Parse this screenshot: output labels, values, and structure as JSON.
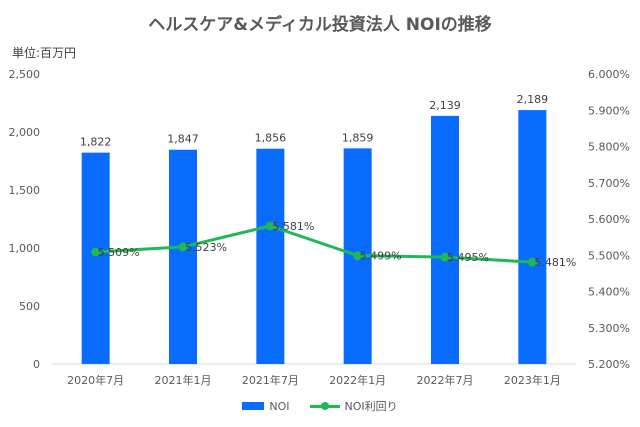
{
  "chart_data": {
    "type": "bar+line",
    "title": "ヘルスケア&メディカル投資法人 NOIの推移",
    "unit_label": "単位:百万円",
    "categories": [
      "2020年7月",
      "2021年1月",
      "2021年7月",
      "2022年1月",
      "2022年7月",
      "2023年1月"
    ],
    "series": [
      {
        "name": "NOI",
        "type": "bar",
        "axis": "left",
        "color": "#0a6cff",
        "values": [
          1822,
          1847,
          1856,
          1859,
          2139,
          2189
        ],
        "labels": [
          "1,822",
          "1,847",
          "1,856",
          "1,859",
          "2,139",
          "2,189"
        ]
      },
      {
        "name": "NOI利回り",
        "type": "line",
        "axis": "right",
        "color": "#1db954",
        "values": [
          5.509,
          5.523,
          5.581,
          5.499,
          5.495,
          5.481
        ],
        "labels": [
          "5.509%",
          "5.523%",
          "5.581%",
          "5.499%",
          "5.495%",
          "5.481%"
        ]
      }
    ],
    "y_left": {
      "min": 0,
      "max": 2500,
      "ticks": [
        0,
        500,
        1000,
        1500,
        2000,
        2500
      ],
      "tick_labels": [
        "0",
        "500",
        "1,000",
        "1,500",
        "2,000",
        "2,500"
      ]
    },
    "y_right": {
      "min": 5.2,
      "max": 6.0,
      "ticks": [
        5.2,
        5.3,
        5.4,
        5.5,
        5.6,
        5.7,
        5.8,
        5.9,
        6.0
      ],
      "tick_labels": [
        "5.200%",
        "5.300%",
        "5.400%",
        "5.500%",
        "5.600%",
        "5.700%",
        "5.800%",
        "5.900%",
        "6.000%"
      ]
    },
    "grid": false,
    "legend_position": "bottom"
  }
}
